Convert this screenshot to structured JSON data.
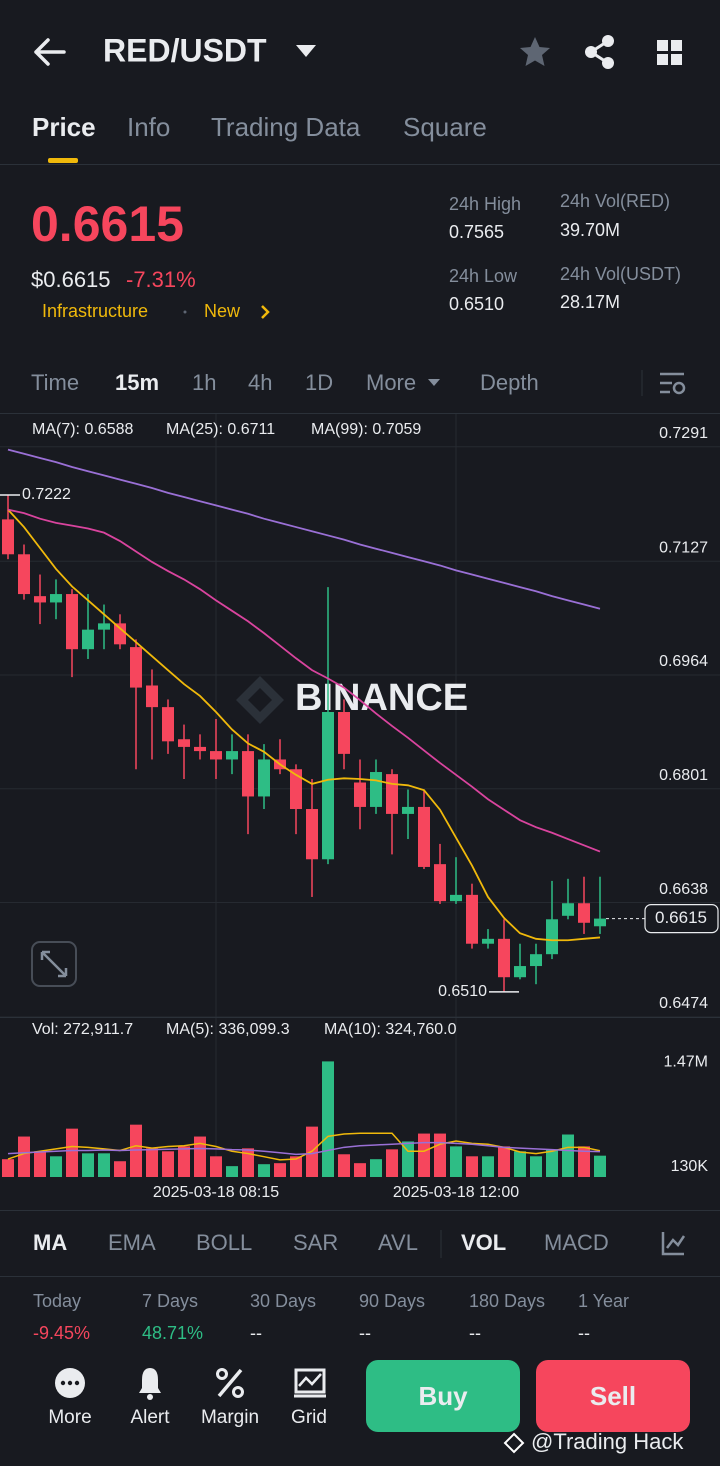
{
  "header": {
    "pair": "RED/USDT"
  },
  "tabs": [
    "Price",
    "Info",
    "Trading Data",
    "Square"
  ],
  "ticker": {
    "price": "0.6615",
    "usd_price": "$0.6615",
    "change": "-7.31%",
    "tags": [
      "Infrastructure",
      "New"
    ],
    "stats": [
      {
        "label": "24h High",
        "value": "0.7565"
      },
      {
        "label": "24h Vol(RED)",
        "value": "39.70M"
      },
      {
        "label": "24h Low",
        "value": "0.6510"
      },
      {
        "label": "24h Vol(USDT)",
        "value": "28.17M"
      }
    ]
  },
  "timeframes": [
    "Time",
    "15m",
    "1h",
    "4h",
    "1D",
    "More",
    "Depth"
  ],
  "chart_data": {
    "type": "candlestick",
    "watermark": "BINANCE",
    "categories": [
      null,
      null,
      null,
      null,
      null,
      null,
      null,
      null,
      null,
      null,
      null,
      null,
      null,
      "2025-03-18 08:15",
      null,
      null,
      null,
      null,
      null,
      null,
      null,
      null,
      null,
      null,
      null,
      null,
      null,
      null,
      "2025-03-18 12:00",
      null,
      null,
      null,
      null,
      null,
      null,
      null,
      null,
      null
    ],
    "open": [
      0.7187,
      0.7137,
      0.7077,
      0.7068,
      0.708,
      0.7001,
      0.7029,
      0.7038,
      0.7004,
      0.6949,
      0.6918,
      0.6872,
      0.6861,
      0.6855,
      0.6843,
      0.6855,
      0.679,
      0.6843,
      0.6829,
      0.6772,
      0.67,
      0.6911,
      0.681,
      0.6775,
      0.6822,
      0.6765,
      0.6775,
      0.6693,
      0.664,
      0.6649,
      0.6579,
      0.6586,
      0.6531,
      0.6547,
      0.6564,
      0.6619,
      0.6637,
      0.6604
    ],
    "high": [
      0.7222,
      0.7151,
      0.7108,
      0.7101,
      0.7087,
      0.708,
      0.7065,
      0.7051,
      0.7015,
      0.6972,
      0.6929,
      0.6893,
      0.6879,
      0.6901,
      0.6879,
      0.6879,
      0.6865,
      0.6872,
      0.6836,
      0.6815,
      0.709,
      0.6929,
      0.6843,
      0.6843,
      0.6829,
      0.68,
      0.68,
      0.6722,
      0.6703,
      0.6665,
      0.66,
      0.6614,
      0.6579,
      0.6579,
      0.6669,
      0.6672,
      0.6675,
      0.6675
    ],
    "low": [
      0.713,
      0.7072,
      0.7037,
      0.7044,
      0.6961,
      0.6987,
      0.7001,
      0.7001,
      0.6829,
      0.6843,
      0.6851,
      0.6815,
      0.6843,
      0.6815,
      0.6822,
      0.6736,
      0.6772,
      0.6822,
      0.6736,
      0.6646,
      0.6693,
      0.6829,
      0.6743,
      0.6765,
      0.6707,
      0.6729,
      0.6686,
      0.6636,
      0.6636,
      0.6572,
      0.6572,
      0.651,
      0.6528,
      0.6521,
      0.6557,
      0.6614,
      0.6593,
      0.6593
    ],
    "close": [
      0.7137,
      0.708,
      0.7068,
      0.708,
      0.7001,
      0.7029,
      0.7038,
      0.7008,
      0.6946,
      0.6918,
      0.6869,
      0.6861,
      0.6855,
      0.6843,
      0.6855,
      0.679,
      0.6843,
      0.6829,
      0.6772,
      0.67,
      0.6911,
      0.6851,
      0.6775,
      0.6825,
      0.6765,
      0.6775,
      0.6689,
      0.664,
      0.6649,
      0.6579,
      0.6586,
      0.6531,
      0.6547,
      0.6564,
      0.6614,
      0.6637,
      0.6609,
      0.6615
    ],
    "up_color": "#2ebd85",
    "down_color": "#f6465d",
    "overlays": [
      {
        "label": "MA(7): 0.6588",
        "color": "#f0b90b",
        "values": [
          0.7201,
          0.7176,
          0.7146,
          0.7116,
          0.7091,
          0.7071,
          0.7051,
          0.7031,
          0.7011,
          0.6991,
          0.6971,
          0.6951,
          0.6934,
          0.6911,
          0.6886,
          0.6866,
          0.6854,
          0.6836,
          0.6821,
          0.6808,
          0.6814,
          0.6816,
          0.6815,
          0.6813,
          0.6808,
          0.6806,
          0.6799,
          0.6771,
          0.6731,
          0.6691,
          0.6646,
          0.6616,
          0.6594,
          0.6586,
          0.6584,
          0.6584,
          0.6586,
          0.6588
        ]
      },
      {
        "label": "MA(25): 0.6711",
        "color": "#d9449e",
        "values": [
          0.7201,
          0.7196,
          0.7188,
          0.7182,
          0.7178,
          0.7174,
          0.7168,
          0.7156,
          0.7141,
          0.7126,
          0.7113,
          0.7101,
          0.7087,
          0.7071,
          0.7056,
          0.7041,
          0.7024,
          0.7006,
          0.6988,
          0.6971,
          0.6959,
          0.6946,
          0.6928,
          0.6909,
          0.6891,
          0.6874,
          0.6856,
          0.6838,
          0.6821,
          0.6804,
          0.6786,
          0.6771,
          0.6756,
          0.6746,
          0.6738,
          0.6729,
          0.672,
          0.6711
        ]
      },
      {
        "label": "MA(99): 0.7059",
        "color": "#9a70d6",
        "values": [
          0.7287,
          0.7281,
          0.7275,
          0.7269,
          0.7262,
          0.7256,
          0.725,
          0.7244,
          0.7238,
          0.7232,
          0.7225,
          0.7219,
          0.7213,
          0.7207,
          0.7201,
          0.7195,
          0.7188,
          0.7182,
          0.7176,
          0.717,
          0.7164,
          0.7158,
          0.7151,
          0.7145,
          0.7139,
          0.7133,
          0.7127,
          0.7121,
          0.7114,
          0.7108,
          0.7102,
          0.7096,
          0.709,
          0.7084,
          0.7077,
          0.7071,
          0.7065,
          0.7059
        ]
      }
    ],
    "annotations": [
      {
        "text": "0.7222",
        "value": 0.7222
      },
      {
        "text": "0.6510",
        "value": 0.651
      }
    ],
    "last_price": {
      "text": "0.6615",
      "value": 0.6615
    },
    "ylim": [
      0.6474,
      0.7338
    ],
    "yticks": [
      0.7291,
      0.7127,
      0.6964,
      0.6801,
      0.6638,
      0.6474
    ],
    "grid": true,
    "volume": {
      "label": "Vol: 272,911.7",
      "values": [
        228000,
        518000,
        329000,
        265000,
        619000,
        303000,
        303000,
        202000,
        670000,
        367000,
        329000,
        392000,
        518000,
        265000,
        139000,
        367000,
        164000,
        177000,
        265000,
        645000,
        1480000,
        291000,
        177000,
        228000,
        354000,
        455000,
        556000,
        556000,
        392000,
        265000,
        265000,
        392000,
        329000,
        265000,
        354000,
        544000,
        392000,
        272911.7
      ],
      "overlays": [
        {
          "label": "MA(5): 336,099.3",
          "color": "#f0b90b",
          "values": [
            230000,
            300000,
            330000,
            360000,
            390000,
            380000,
            360000,
            340000,
            400000,
            370000,
            390000,
            400000,
            430000,
            390000,
            330000,
            300000,
            260000,
            220000,
            230000,
            330000,
            520000,
            550000,
            560000,
            560000,
            560000,
            330000,
            330000,
            420000,
            460000,
            430000,
            420000,
            380000,
            320000,
            300000,
            330000,
            380000,
            380000,
            336099.3
          ]
        },
        {
          "label": "MA(10): 324,760.0",
          "color": "#9a70d6",
          "values": [
            300000,
            310000,
            320000,
            330000,
            340000,
            340000,
            345000,
            340000,
            345000,
            350000,
            355000,
            360000,
            365000,
            360000,
            350000,
            345000,
            330000,
            310000,
            290000,
            300000,
            340000,
            380000,
            400000,
            410000,
            420000,
            430000,
            440000,
            440000,
            430000,
            420000,
            400000,
            380000,
            370000,
            360000,
            350000,
            340000,
            330000,
            324760
          ]
        }
      ],
      "ylim": [
        0,
        2010000
      ],
      "yticks": [
        {
          "value": 1470000,
          "label": "1.47M"
        },
        {
          "value": 130000,
          "label": "130K"
        }
      ]
    }
  },
  "indicators": [
    "MA",
    "EMA",
    "BOLL",
    "SAR",
    "AVL",
    "VOL",
    "MACD"
  ],
  "performance": [
    {
      "label": "Today",
      "value": "-9.45%"
    },
    {
      "label": "7 Days",
      "value": "48.71%"
    },
    {
      "label": "30 Days",
      "value": "--"
    },
    {
      "label": "90 Days",
      "value": "--"
    },
    {
      "label": "180 Days",
      "value": "--"
    },
    {
      "label": "1 Year",
      "value": "--"
    }
  ],
  "bottom_bar": {
    "actions": [
      "More",
      "Alert",
      "Margin",
      "Grid"
    ],
    "buy": "Buy",
    "sell": "Sell"
  },
  "watermark": "@Trading Hack"
}
